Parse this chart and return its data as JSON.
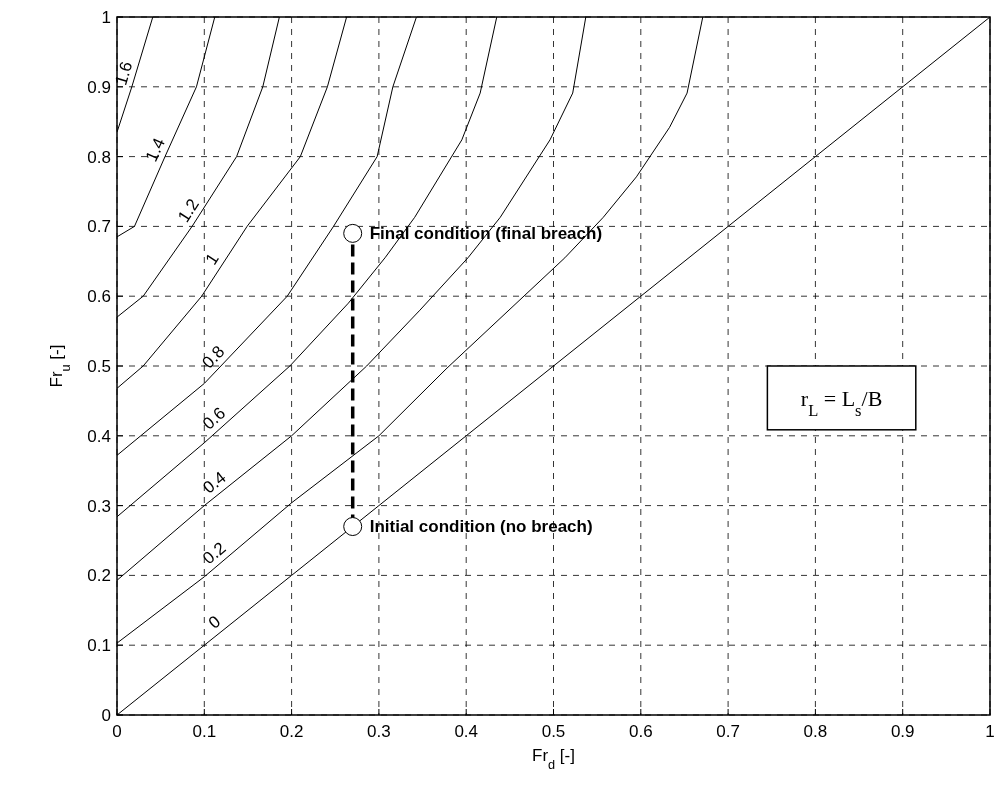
{
  "chart_data": {
    "type": "line",
    "xlabel": "Fr$_{d}$ [-]",
    "ylabel": "Fr$_{u}$ [-]",
    "xlim": [
      0,
      1
    ],
    "ylim": [
      0,
      1
    ],
    "xticks": [
      0,
      0.1,
      0.2,
      0.3,
      0.4,
      0.5,
      0.6,
      0.7,
      0.8,
      0.9,
      1
    ],
    "yticks": [
      0,
      0.1,
      0.2,
      0.3,
      0.4,
      0.5,
      0.6,
      0.7,
      0.8,
      0.9,
      1
    ],
    "grid": true,
    "marker": "none",
    "line_style": "solid",
    "series": [
      {
        "name": "0",
        "color": "#000000",
        "x": [
          0,
          0.1,
          0.2,
          0.3,
          0.4,
          0.5,
          0.6,
          0.7,
          0.8,
          0.9,
          1
        ],
        "values": [
          0,
          0.1,
          0.2,
          0.3,
          0.4,
          0.5,
          0.6,
          0.7,
          0.8,
          0.9,
          1
        ]
      },
      {
        "name": "0.2",
        "color": "#000000",
        "x": [
          0,
          0.1,
          0.2,
          0.3,
          0.378,
          0.513,
          0.557,
          0.595,
          0.633,
          0.653,
          0.671
        ],
        "values": [
          0.103,
          0.198,
          0.304,
          0.4,
          0.497,
          0.655,
          0.713,
          0.771,
          0.842,
          0.891,
          1
        ]
      },
      {
        "name": "0.4",
        "color": "#000000",
        "x": [
          0,
          0.1,
          0.2,
          0.286,
          0.347,
          0.402,
          0.439,
          0.496,
          0.522,
          0.537
        ],
        "values": [
          0.193,
          0.3,
          0.4,
          0.5,
          0.58,
          0.655,
          0.713,
          0.824,
          0.891,
          1
        ]
      },
      {
        "name": "0.6",
        "color": "#000000",
        "x": [
          0,
          0.1,
          0.198,
          0.265,
          0.307,
          0.341,
          0.395,
          0.416,
          0.435
        ],
        "values": [
          0.284,
          0.39,
          0.5,
          0.59,
          0.655,
          0.713,
          0.824,
          0.891,
          1
        ]
      },
      {
        "name": "0.8",
        "color": "#000000",
        "x": [
          0,
          0.1,
          0.195,
          0.248,
          0.298,
          0.316,
          0.343
        ],
        "values": [
          0.372,
          0.475,
          0.6,
          0.7,
          0.8,
          0.9,
          1
        ]
      },
      {
        "name": "1",
        "color": "#000000",
        "x": [
          0,
          0.03,
          0.097,
          0.149,
          0.21,
          0.241,
          0.263
        ],
        "values": [
          0.468,
          0.5,
          0.6,
          0.7,
          0.8,
          0.9,
          1
        ]
      },
      {
        "name": "1.2",
        "color": "#000000",
        "x": [
          0,
          0.03,
          0.086,
          0.137,
          0.167,
          0.186
        ],
        "values": [
          0.57,
          0.6,
          0.7,
          0.8,
          0.9,
          1
        ]
      },
      {
        "name": "1.4",
        "color": "#000000",
        "x": [
          0,
          0.02,
          0.055,
          0.091,
          0.112
        ],
        "values": [
          0.685,
          0.7,
          0.8,
          0.9,
          1
        ]
      },
      {
        "name": "1.6",
        "color": "#000000",
        "x": [
          0,
          0.017,
          0.041
        ],
        "values": [
          0.835,
          0.9,
          1
        ]
      },
      {
        "color": "#000000",
        "x": [
          0.27,
          0.27
        ],
        "values": [
          0.27,
          0.69
        ],
        "marker": "circle",
        "line_style": "dashed"
      }
    ],
    "annotations": [
      {
        "text": "Final condition (final breach)",
        "x": 0.27,
        "y": 0.69
      },
      {
        "text": "Initial condition (no breach)",
        "x": 0.27,
        "y": 0.27
      },
      "r$_{L}$ = L$_{s}$/B"
    ]
  }
}
